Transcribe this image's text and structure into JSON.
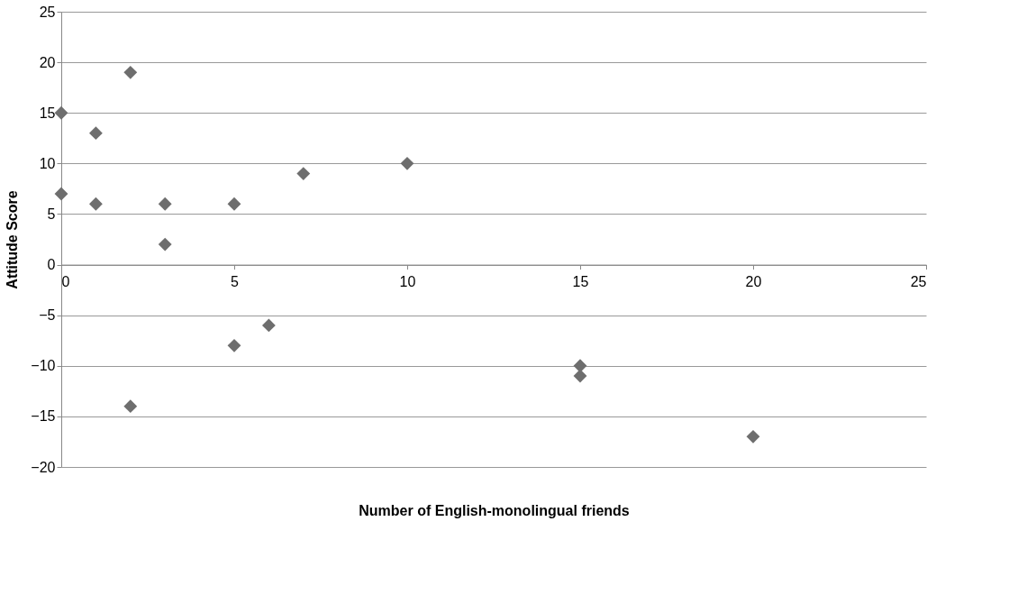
{
  "chart_data": {
    "type": "scatter",
    "xlabel": "Number of English-monolingual friends",
    "ylabel": "Attitude Score",
    "x": [
      0,
      0,
      1,
      1,
      2,
      2,
      3,
      3,
      5,
      5,
      6,
      7,
      10,
      15,
      15,
      20
    ],
    "series": [
      {
        "color": "#6e6e6e",
        "values": [
          15,
          7,
          13,
          6,
          19,
          -14,
          6,
          2,
          6,
          -8,
          -6,
          9,
          10,
          -10,
          -11,
          -17
        ]
      }
    ],
    "xlim": [
      0,
      25
    ],
    "xticks": [
      0,
      5,
      10,
      15,
      20,
      25
    ],
    "ylim": [
      -20,
      25
    ],
    "yticks": [
      -20,
      -15,
      -10,
      -5,
      0,
      5,
      10,
      15,
      20,
      25
    ],
    "grid": "y",
    "marker": "diamond"
  }
}
